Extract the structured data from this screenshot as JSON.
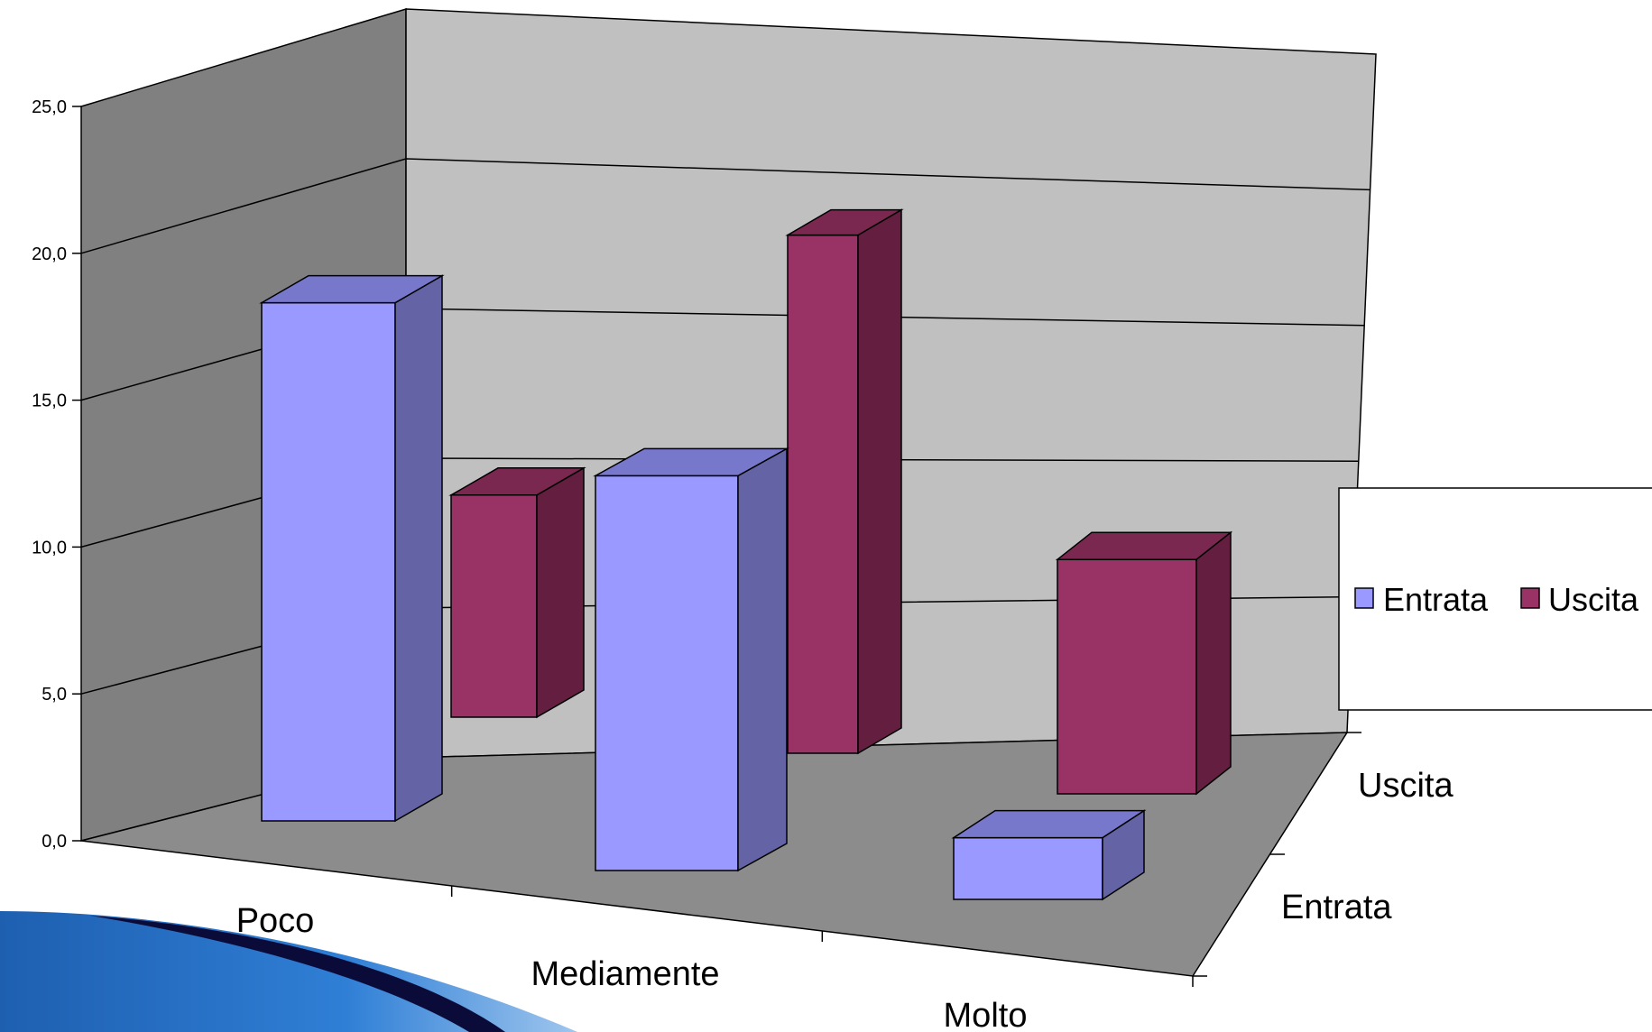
{
  "chart_data": {
    "type": "bar",
    "subtype": "3d-clustered-column",
    "title": "",
    "xlabel": "",
    "ylabel": "",
    "ylim": [
      0,
      25
    ],
    "y_ticks": [
      "0,0",
      "5,0",
      "10,0",
      "15,0",
      "20,0",
      "25,0"
    ],
    "categories": [
      "Poco",
      "Mediamente",
      "Molto"
    ],
    "series": [
      {
        "name": "Entrata",
        "values": [
          21.0,
          16.0,
          2.5
        ]
      },
      {
        "name": "Uscita",
        "values": [
          9.0,
          21.0,
          9.5
        ]
      }
    ],
    "depth_axis_labels": [
      "Entrata",
      "Uscita"
    ],
    "grid": true,
    "legend": {
      "position": "right",
      "entries": [
        "Entrata",
        "Uscita"
      ]
    },
    "colors": {
      "Entrata": {
        "front": "#9999ff",
        "top": "#7777cc",
        "side": "#6363a5"
      },
      "Uscita": {
        "front": "#993366",
        "top": "#7a2850",
        "side": "#631e40"
      },
      "back_wall": "#c0c0c0",
      "side_wall": "#808080",
      "floor": "#8c8c8c"
    }
  }
}
